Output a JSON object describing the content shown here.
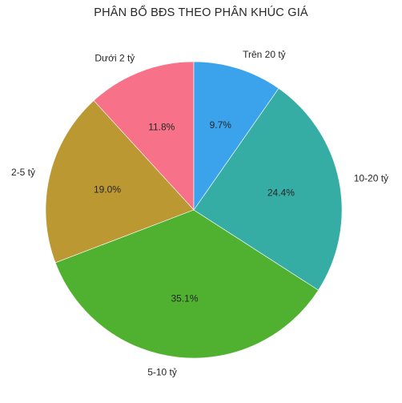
{
  "chart_data": {
    "type": "pie",
    "title": "PHÂN BỔ BĐS THEO PHÂN KHÚC GIÁ",
    "start_angle_deg": 90,
    "direction": "counterclockwise",
    "slices": [
      {
        "label": "Dưới 2 tỷ",
        "value": 11.8,
        "pct_label": "11.8%",
        "color": "#f77189"
      },
      {
        "label": "2-5 tỷ",
        "value": 19.0,
        "pct_label": "19.0%",
        "color": "#bb9832"
      },
      {
        "label": "5-10 tỷ",
        "value": 35.1,
        "pct_label": "35.1%",
        "color": "#50b131"
      },
      {
        "label": "10-20 tỷ",
        "value": 24.4,
        "pct_label": "24.4%",
        "color": "#36ada4"
      },
      {
        "label": "Trên 20 tỷ",
        "value": 9.7,
        "pct_label": "9.7%",
        "color": "#3ba3ec"
      }
    ]
  }
}
